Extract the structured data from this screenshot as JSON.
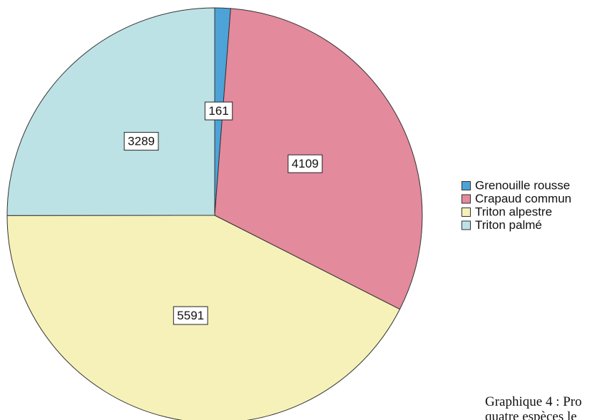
{
  "chart_data": {
    "type": "pie",
    "categories": [
      "Grenouille rousse",
      "Crapaud commun",
      "Triton alpestre",
      "Triton palmé"
    ],
    "values": [
      161,
      4109,
      5591,
      3289
    ],
    "colors": [
      "#4da3d8",
      "#e38a9c",
      "#f6f1b9",
      "#bce2e5"
    ],
    "legend": "right",
    "annotations": [
      "Graphique 4 : Pro",
      "quatre espèces le"
    ]
  }
}
